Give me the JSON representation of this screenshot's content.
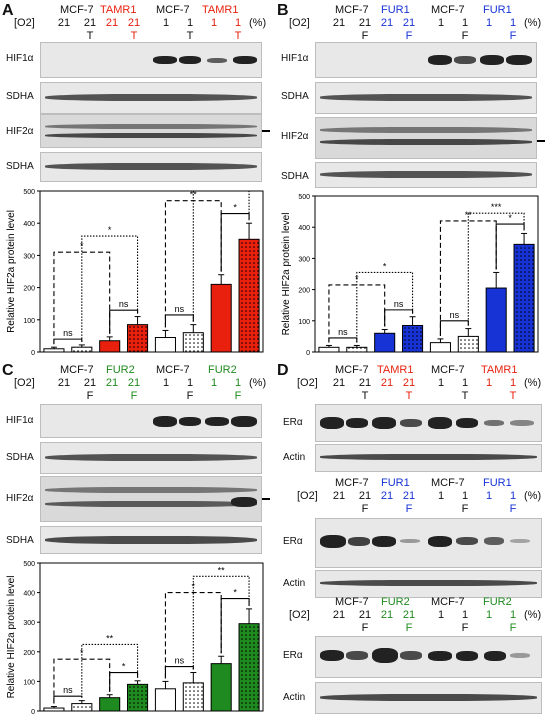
{
  "panels": [
    {
      "letter": "A",
      "groups": [
        {
          "name": "MCF-7",
          "color": "#111111"
        },
        {
          "name": "TAMR1",
          "color": "#e8200d"
        },
        {
          "name": "MCF-7",
          "color": "#111111"
        },
        {
          "name": "TAMR1",
          "color": "#e8200d"
        }
      ],
      "o2_label": "[O2]",
      "o2_values": [
        "21",
        "21",
        "21",
        "21",
        "1",
        "1",
        "1",
        "1"
      ],
      "o2_unit": "(%)",
      "treat": [
        "",
        "T",
        "",
        "T",
        "",
        "T",
        "",
        "T"
      ],
      "blots": [
        "HIF1α",
        "SDHA",
        "HIF2α",
        "SDHA"
      ],
      "chart_data": {
        "type": "bar",
        "ylabel": "Relative HIF2a protein level",
        "ylim": [
          0,
          500
        ],
        "yticks": [
          0,
          100,
          200,
          300,
          400,
          500
        ],
        "values": [
          10,
          15,
          35,
          85,
          45,
          60,
          210,
          350
        ],
        "errors": [
          5,
          7,
          12,
          25,
          22,
          25,
          30,
          50
        ],
        "colors": [
          "#ffffff",
          "#ffffff",
          "#e8200d",
          "#e8200d",
          "#ffffff",
          "#ffffff",
          "#e8200d",
          "#e8200d"
        ],
        "dotted": [
          false,
          true,
          false,
          true,
          false,
          true,
          false,
          true
        ],
        "comparisons": [
          {
            "a": 0,
            "b": 1,
            "label": "ns",
            "style": "solid",
            "level": 40
          },
          {
            "a": 2,
            "b": 3,
            "label": "ns",
            "style": "solid",
            "level": 130
          },
          {
            "a": 4,
            "b": 5,
            "label": "ns",
            "style": "solid",
            "level": 115
          },
          {
            "a": 6,
            "b": 7,
            "label": "*",
            "style": "solid",
            "level": 430
          },
          {
            "a": 0,
            "b": 2,
            "label": "*",
            "style": "dashed",
            "level": 310
          },
          {
            "a": 1,
            "b": 3,
            "label": "*",
            "style": "dotted",
            "level": 360
          },
          {
            "a": 4,
            "b": 6,
            "label": "**",
            "style": "dashed",
            "level": 470
          },
          {
            "a": 5,
            "b": 7,
            "label": "**",
            "style": "dotted",
            "level": 500
          }
        ]
      }
    },
    {
      "letter": "B",
      "groups": [
        {
          "name": "MCF-7",
          "color": "#111111"
        },
        {
          "name": "FUR1",
          "color": "#1733d6"
        },
        {
          "name": "MCF-7",
          "color": "#111111"
        },
        {
          "name": "FUR1",
          "color": "#1733d6"
        }
      ],
      "o2_label": "[O2]",
      "o2_values": [
        "21",
        "21",
        "21",
        "21",
        "1",
        "1",
        "1",
        "1"
      ],
      "o2_unit": "(%)",
      "treat": [
        "",
        "F",
        "",
        "F",
        "",
        "F",
        "",
        "F"
      ],
      "blots": [
        "HIF1α",
        "SDHA",
        "HIF2α",
        "SDHA"
      ],
      "chart_data": {
        "type": "bar",
        "ylabel": "Relative HIF2a protein level",
        "ylim": [
          0,
          500
        ],
        "yticks": [
          0,
          100,
          200,
          300,
          400,
          500
        ],
        "values": [
          15,
          15,
          60,
          85,
          30,
          50,
          205,
          345
        ],
        "errors": [
          6,
          6,
          12,
          28,
          12,
          25,
          50,
          35
        ],
        "colors": [
          "#ffffff",
          "#ffffff",
          "#1733d6",
          "#1733d6",
          "#ffffff",
          "#ffffff",
          "#1733d6",
          "#1733d6"
        ],
        "dotted": [
          false,
          true,
          false,
          true,
          false,
          true,
          false,
          true
        ],
        "comparisons": [
          {
            "a": 0,
            "b": 1,
            "label": "ns",
            "style": "solid",
            "level": 45
          },
          {
            "a": 2,
            "b": 3,
            "label": "ns",
            "style": "solid",
            "level": 135
          },
          {
            "a": 4,
            "b": 5,
            "label": "ns",
            "style": "solid",
            "level": 100
          },
          {
            "a": 6,
            "b": 7,
            "label": "*",
            "style": "solid",
            "level": 410
          },
          {
            "a": 0,
            "b": 2,
            "label": "*",
            "style": "dashed",
            "level": 215
          },
          {
            "a": 1,
            "b": 3,
            "label": "*",
            "style": "dotted",
            "level": 255
          },
          {
            "a": 4,
            "b": 6,
            "label": "**",
            "style": "dashed",
            "level": 420
          },
          {
            "a": 5,
            "b": 7,
            "label": "***",
            "style": "dotted",
            "level": 445
          }
        ]
      }
    },
    {
      "letter": "C",
      "groups": [
        {
          "name": "MCF-7",
          "color": "#111111"
        },
        {
          "name": "FUR2",
          "color": "#1f8a1f"
        },
        {
          "name": "MCF-7",
          "color": "#111111"
        },
        {
          "name": "FUR2",
          "color": "#1f8a1f"
        }
      ],
      "o2_label": "[O2]",
      "o2_values": [
        "21",
        "21",
        "21",
        "21",
        "1",
        "1",
        "1",
        "1"
      ],
      "o2_unit": "(%)",
      "treat": [
        "",
        "F",
        "",
        "F",
        "",
        "F",
        "",
        "F"
      ],
      "blots": [
        "HIF1α",
        "SDHA",
        "HIF2α",
        "SDHA"
      ],
      "chart_data": {
        "type": "bar",
        "ylabel": "Relative HIF2a protein level",
        "ylim": [
          0,
          500
        ],
        "yticks": [
          0,
          100,
          200,
          300,
          400,
          500
        ],
        "values": [
          10,
          25,
          45,
          90,
          75,
          95,
          160,
          295
        ],
        "errors": [
          5,
          10,
          10,
          12,
          25,
          35,
          25,
          50
        ],
        "colors": [
          "#ffffff",
          "#ffffff",
          "#1f8a1f",
          "#1f8a1f",
          "#ffffff",
          "#ffffff",
          "#1f8a1f",
          "#1f8a1f"
        ],
        "dotted": [
          false,
          true,
          false,
          true,
          false,
          true,
          false,
          true
        ],
        "comparisons": [
          {
            "a": 0,
            "b": 1,
            "label": "ns",
            "style": "solid",
            "level": 50
          },
          {
            "a": 2,
            "b": 3,
            "label": "*",
            "style": "solid",
            "level": 130
          },
          {
            "a": 4,
            "b": 5,
            "label": "ns",
            "style": "solid",
            "level": 150
          },
          {
            "a": 6,
            "b": 7,
            "label": "*",
            "style": "solid",
            "level": 380
          },
          {
            "a": 0,
            "b": 2,
            "label": "*",
            "style": "dashed",
            "level": 175
          },
          {
            "a": 1,
            "b": 3,
            "label": "**",
            "style": "dotted",
            "level": 225
          },
          {
            "a": 4,
            "b": 6,
            "label": "*",
            "style": "dashed",
            "level": 400
          },
          {
            "a": 5,
            "b": 7,
            "label": "**",
            "style": "dotted",
            "level": 455
          }
        ]
      }
    }
  ],
  "panelD": {
    "letter": "D",
    "sub": [
      {
        "groups": [
          {
            "name": "MCF-7",
            "color": "#111111"
          },
          {
            "name": "TAMR1",
            "color": "#e8200d"
          },
          {
            "name": "MCF-7",
            "color": "#111111"
          },
          {
            "name": "TAMR1",
            "color": "#e8200d"
          }
        ],
        "o2_label": "[O2]",
        "o2_values": [
          "21",
          "21",
          "21",
          "21",
          "1",
          "1",
          "1",
          "1"
        ],
        "o2_unit": "(%)",
        "treat": [
          "",
          "T",
          "",
          "T",
          "",
          "T",
          "",
          "T"
        ],
        "blots": [
          "ERα",
          "Actin"
        ]
      },
      {
        "groups": [
          {
            "name": "MCF-7",
            "color": "#111111"
          },
          {
            "name": "FUR1",
            "color": "#1733d6"
          },
          {
            "name": "MCF-7",
            "color": "#111111"
          },
          {
            "name": "FUR1",
            "color": "#1733d6"
          }
        ],
        "o2_label": "[O2]",
        "o2_values": [
          "21",
          "21",
          "21",
          "21",
          "1",
          "1",
          "1",
          "1"
        ],
        "o2_unit": "(%)",
        "treat": [
          "",
          "F",
          "",
          "F",
          "",
          "F",
          "",
          "F"
        ],
        "blots": [
          "ERα",
          "Actin"
        ]
      },
      {
        "groups": [
          {
            "name": "MCF-7",
            "color": "#111111"
          },
          {
            "name": "FUR2",
            "color": "#1f8a1f"
          },
          {
            "name": "MCF-7",
            "color": "#111111"
          },
          {
            "name": "FUR2",
            "color": "#1f8a1f"
          }
        ],
        "o2_label": "[O2]",
        "o2_values": [
          "21",
          "21",
          "21",
          "21",
          "1",
          "1",
          "1",
          "1"
        ],
        "o2_unit": "(%)",
        "treat": [
          "",
          "F",
          "",
          "F",
          "",
          "F",
          "",
          "F"
        ],
        "blots": [
          "ERα",
          "Actin"
        ]
      }
    ]
  }
}
